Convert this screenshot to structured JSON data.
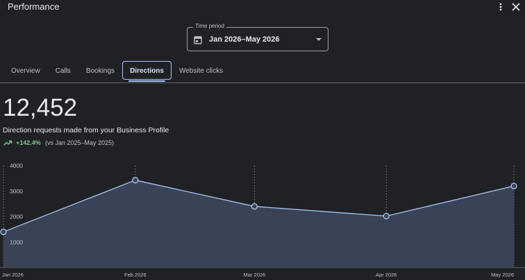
{
  "header": {
    "title": "Performance"
  },
  "time_period": {
    "label": "Time period",
    "value": "Jan 2026–May 2026"
  },
  "tabs": [
    "Overview",
    "Calls",
    "Bookings",
    "Directions",
    "Website clicks"
  ],
  "selected_tab": 3,
  "metric": {
    "value": "12,452",
    "description": "Direction requests made from your Business Profile",
    "change": "+142.4%",
    "comparison": "(vs Jan 2025–May 2025)"
  },
  "chart_data": {
    "type": "area",
    "x": [
      "Jan 2026",
      "Feb 2026",
      "Mar 2026",
      "Apr 2026",
      "May 2026"
    ],
    "values": [
      1400,
      3430,
      2400,
      2020,
      3200
    ],
    "color": "#a8c7fa",
    "ylim": [
      0,
      4000
    ],
    "yticks": [
      1000,
      2000,
      3000,
      4000
    ]
  }
}
